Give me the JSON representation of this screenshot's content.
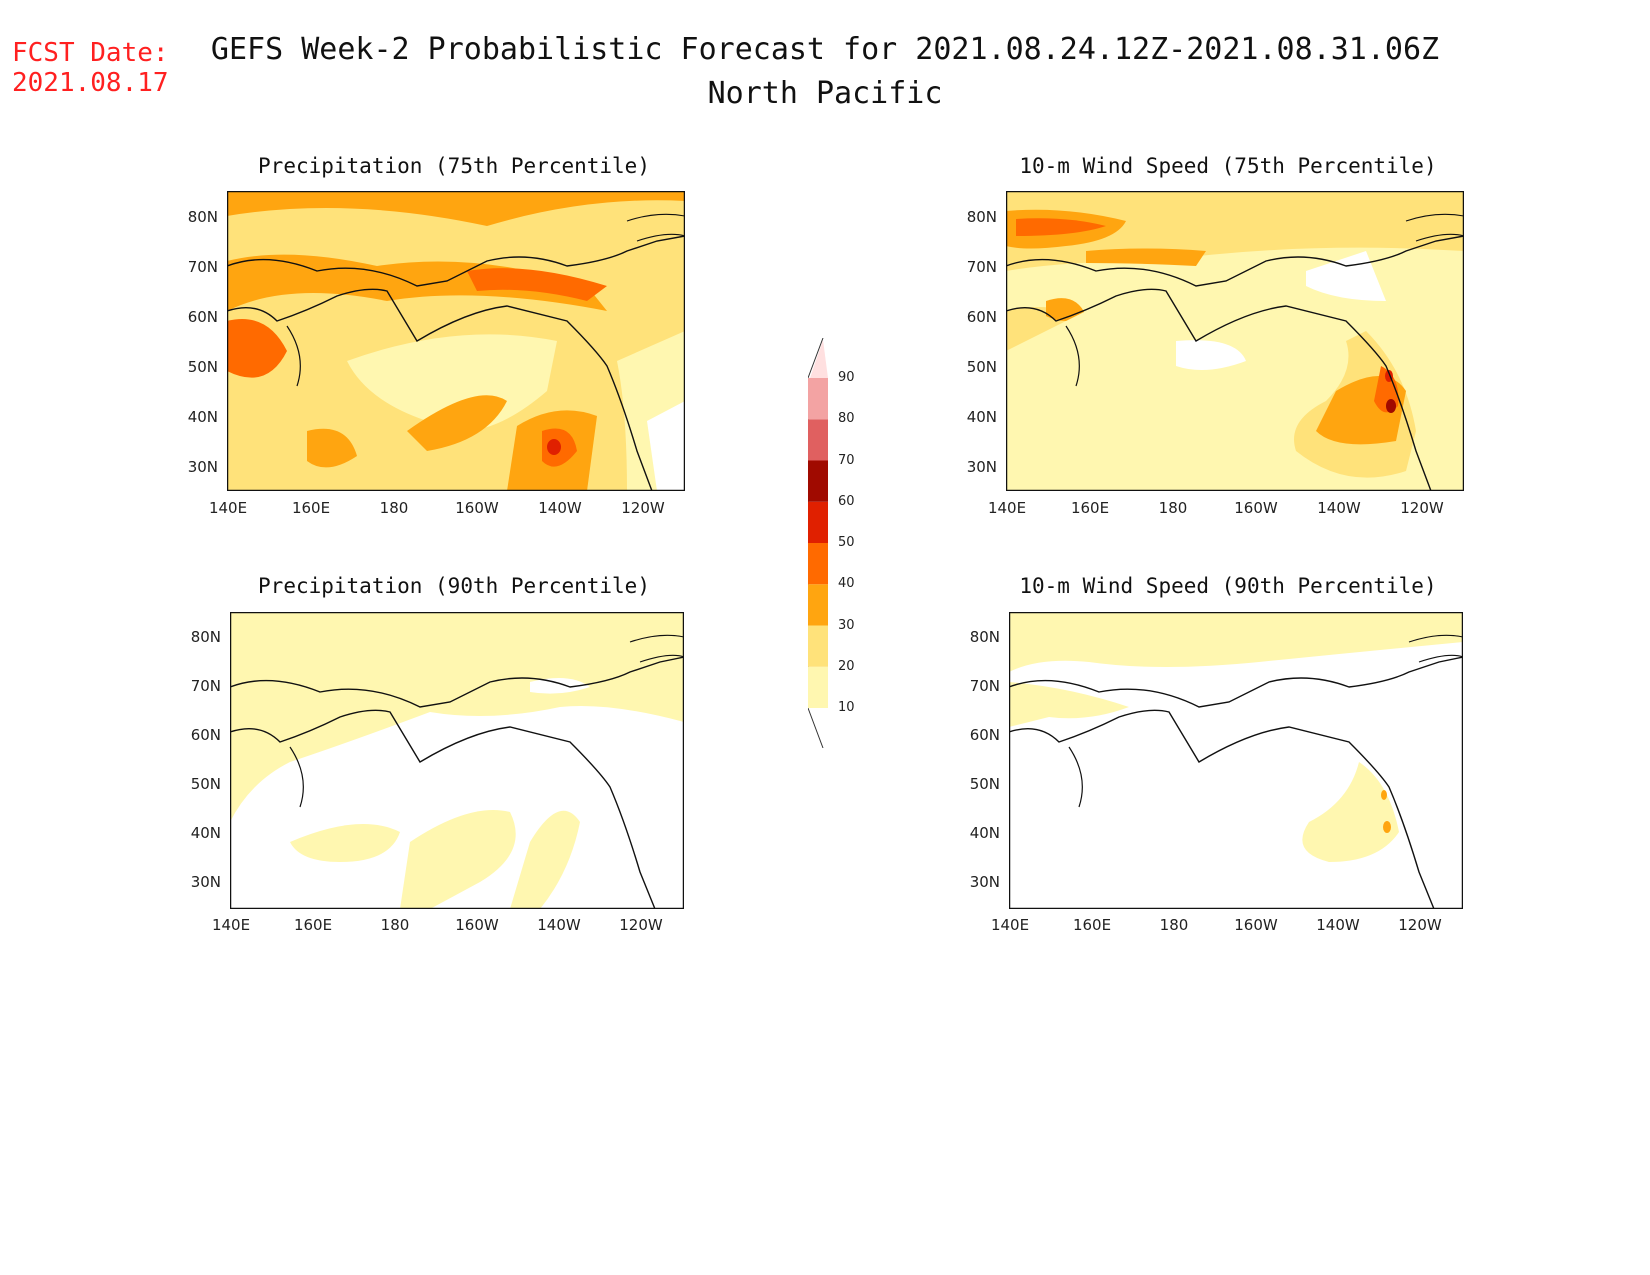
{
  "header": {
    "fcst_line1": "FCST Date:",
    "fcst_line2": "2021.08.17",
    "title": "GEFS Week-2 Probabilistic Forecast for 2021.08.24.12Z-2021.08.31.06Z",
    "region": "North Pacific"
  },
  "panels": [
    {
      "id": "precip75",
      "title": "Precipitation (75th Percentile)"
    },
    {
      "id": "wind75",
      "title": "10-m Wind Speed (75th Percentile)"
    },
    {
      "id": "precip90",
      "title": "Precipitation (90th Percentile)"
    },
    {
      "id": "wind90",
      "title": "10-m Wind Speed (90th Percentile)"
    }
  ],
  "axes": {
    "lat_labels": [
      "80N",
      "70N",
      "60N",
      "50N",
      "40N",
      "30N"
    ],
    "lon_labels": [
      "140E",
      "160E",
      "180",
      "160W",
      "140W",
      "120W"
    ]
  },
  "colorbar": {
    "levels": [
      "10",
      "20",
      "30",
      "40",
      "50",
      "60",
      "70",
      "80",
      "90"
    ],
    "colors": [
      "#fff7b0",
      "#ffe27a",
      "#ffa510",
      "#ff6a00",
      "#e02000",
      "#a00a00",
      "#e06060",
      "#f3a3a3",
      "#ffe0e0"
    ]
  }
}
